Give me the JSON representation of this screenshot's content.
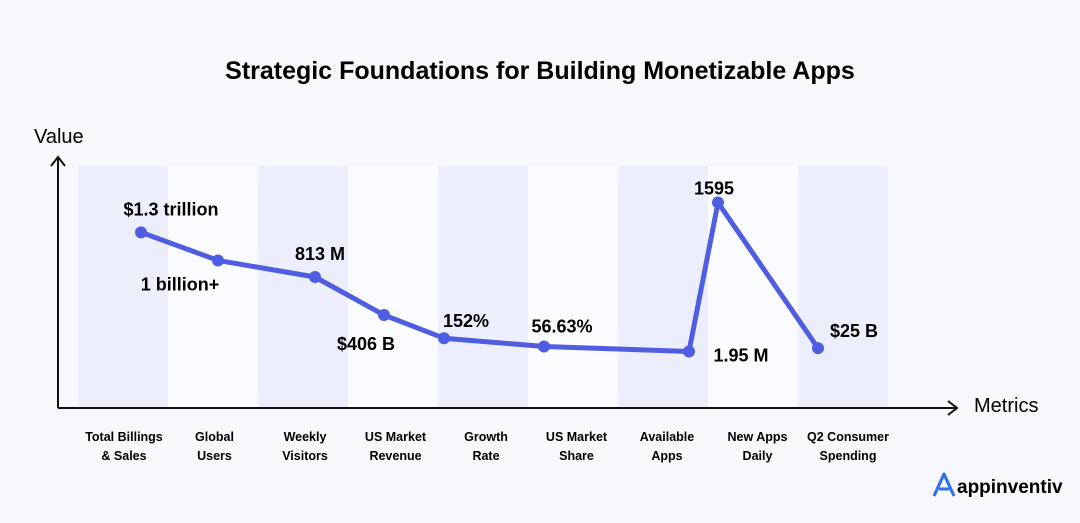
{
  "colors": {
    "line": "#4f5ee0",
    "band": "#eceefb",
    "axis": "#111111",
    "background": "#f7f8fc",
    "brand": "#2b6ef2"
  },
  "chart_data": {
    "type": "line",
    "title": "Strategic Foundations for Building Monetizable Apps",
    "xlabel": "Metrics",
    "ylabel": "Value",
    "grid": false,
    "legend": "none",
    "categories": [
      [
        "Total Billings",
        "& Sales"
      ],
      [
        "Global",
        "Users"
      ],
      [
        "Weekly",
        "Visitors"
      ],
      [
        "US Market",
        "Revenue"
      ],
      [
        "Growth",
        "Rate"
      ],
      [
        "US Market",
        "Share"
      ],
      [
        "Available",
        "Apps"
      ],
      [
        "New Apps",
        "Daily"
      ],
      [
        "Q2 Consumer",
        "Spending"
      ]
    ],
    "values": [
      82,
      65,
      55,
      32,
      18,
      13,
      10,
      100,
      12
    ],
    "ylim": [
      0,
      110
    ],
    "data_labels": [
      "$1.3 trillion",
      "1 billion+",
      "813 M",
      "$406 B",
      "152%",
      "56.63%",
      "1.95 M",
      "1595",
      "$25 B"
    ]
  },
  "brand": {
    "name": "appinventiv"
  }
}
